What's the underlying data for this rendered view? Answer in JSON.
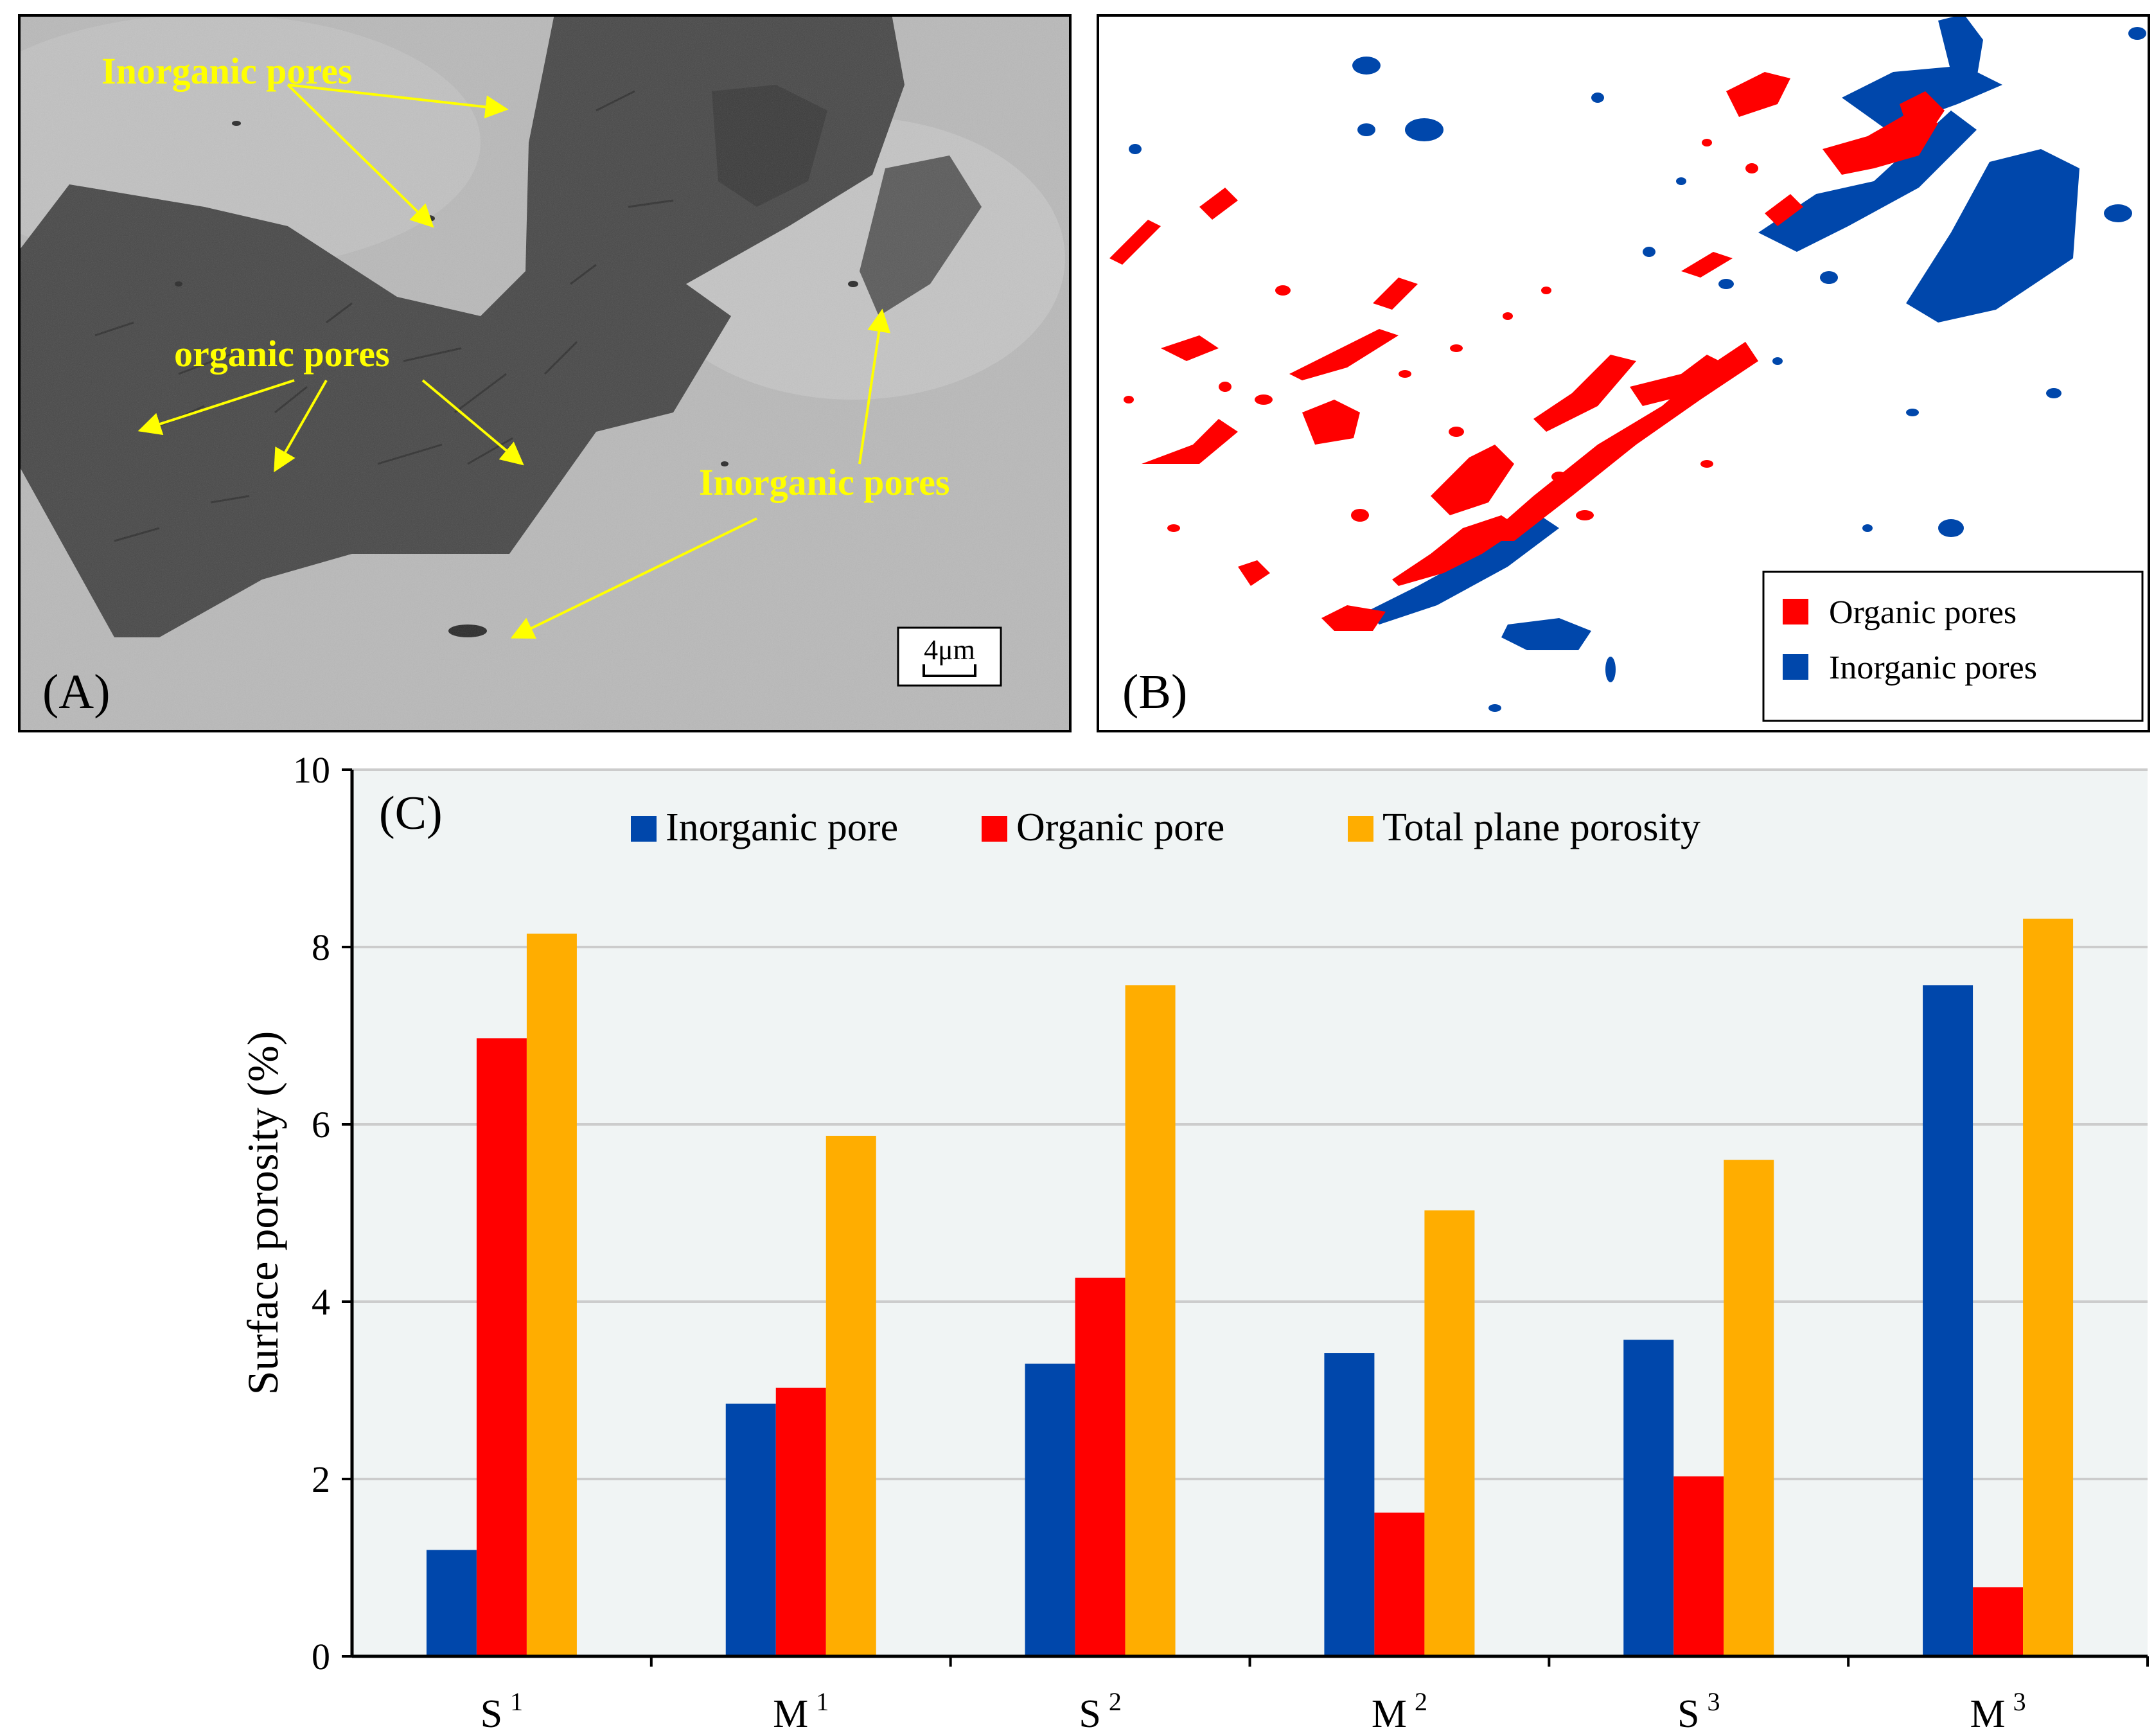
{
  "panel_a": {
    "label": "(A)",
    "annotations": {
      "inorganic_top": "Inorganic pores",
      "organic": "organic pores",
      "inorganic_right": "Inorganic pores"
    },
    "scale_bar": "4μm",
    "colors": {
      "background": "#b8b8b8",
      "organic_matter": "#4a4a4a",
      "annotation": "#ffff00"
    }
  },
  "panel_b": {
    "label": "(B)",
    "legend": [
      {
        "label": "Organic pores",
        "color": "#ff0000"
      },
      {
        "label": "Inorganic pores",
        "color": "#0047ab"
      }
    ]
  },
  "chart_data": {
    "type": "bar",
    "panel_label": "(C)",
    "categories": [
      {
        "base": "S",
        "sup": "1"
      },
      {
        "base": "M",
        "sup": "1"
      },
      {
        "base": "S",
        "sup": "2"
      },
      {
        "base": "M",
        "sup": "2"
      },
      {
        "base": "S",
        "sup": "3"
      },
      {
        "base": "M",
        "sup": "3"
      }
    ],
    "series": [
      {
        "name": "Inorganic pore",
        "color": "#0047ab",
        "values": [
          1.2,
          2.85,
          3.3,
          3.42,
          3.57,
          7.57
        ]
      },
      {
        "name": "Organic pore",
        "color": "#ff0000",
        "values": [
          6.97,
          3.03,
          4.27,
          1.62,
          2.03,
          0.78
        ]
      },
      {
        "name": "Total plane porosity",
        "color": "#ffad00",
        "values": [
          8.15,
          5.87,
          7.57,
          5.03,
          5.6,
          8.32
        ]
      }
    ],
    "ylabel": "Surface porosity (%)",
    "ylim": [
      0,
      10
    ],
    "yticks": [
      0,
      2,
      4,
      6,
      8,
      10
    ],
    "grid": true,
    "legend_position": "top",
    "plot_background": "#f0f4f4"
  }
}
